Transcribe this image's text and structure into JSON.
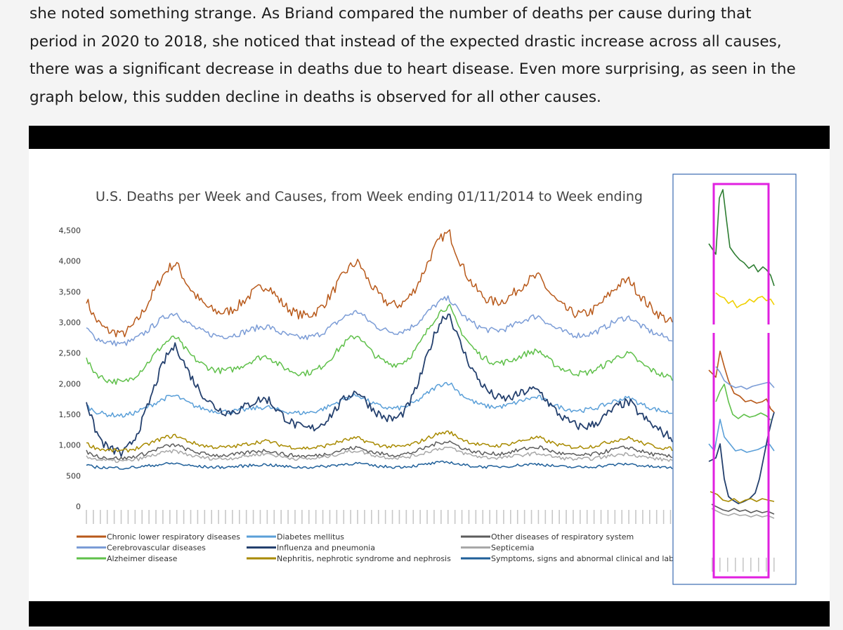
{
  "article": {
    "lines": [
      "she noted something strange. As Briand compared the number of deaths per cause during that",
      "period in 2020 to 2018, she noticed that instead of the expected drastic increase across all causes,",
      "there was a significant decrease in deaths due to heart disease. Even more surprising, as seen in the",
      "graph below, this sudden decline in deaths is observed for all other causes."
    ]
  },
  "colors": {
    "chronic_lower_respiratory": "#b8591a",
    "cerebrovascular": "#7b9cd6",
    "alzheimer": "#5fc04a",
    "diabetes": "#5a9fd8",
    "influenza": "#24406e",
    "nephritis": "#a88a00",
    "other_respiratory": "#5c5c5c",
    "septicemia": "#a8a8a8",
    "symptoms": "#1f5f99",
    "highlight_box": "#e020e0",
    "inset_border": "#3a6ab0",
    "inset_dark_green": "#2e7d32",
    "inset_yellow": "#f0d000"
  },
  "chart_data": {
    "type": "line",
    "title": "U.S. Deaths per Week and Causes, from Week ending 01/11/2014 to Week ending",
    "ylim": [
      0,
      4500
    ],
    "yticks": [
      "4,500",
      "4,000",
      "3,500",
      "3,000",
      "2,500",
      "2,000",
      "1,500",
      "1,000",
      "500",
      "0"
    ],
    "x_weeks": 338,
    "peak_weeks": [
      52,
      105,
      157,
      209,
      261,
      313
    ],
    "legend": {
      "col1": [
        "Chronic lower respiratory diseases",
        "Cerebrovascular diseases",
        "Alzheimer disease"
      ],
      "col2": [
        "Diabetes mellitus",
        "Influenza and pneumonia",
        "Nephritis, nephrotic syndrome and nephrosis"
      ],
      "col3": [
        "Other diseases of respiratory system",
        "Septicemia",
        "Symptoms, signs and abnormal clinical and laborator"
      ]
    },
    "series": [
      {
        "name": "Chronic lower respiratory diseases",
        "base": 2700,
        "amp": 1000,
        "decay": 0.02,
        "peaks": [
          3950,
          3500,
          3900,
          4350,
          3600
        ],
        "color_key": "chronic_lower_respiratory"
      },
      {
        "name": "Cerebrovascular diseases",
        "base": 2600,
        "amp": 500,
        "decay": 0.025,
        "peaks": [
          3150,
          2900,
          3150,
          3350,
          3050
        ],
        "color_key": "cerebrovascular"
      },
      {
        "name": "Alzheimer disease",
        "base": 1950,
        "amp": 500,
        "decay": 0.025,
        "peaks": [
          2750,
          2400,
          2750,
          3200,
          2450
        ],
        "color_key": "alzheimer"
      },
      {
        "name": "Diabetes mellitus",
        "base": 1450,
        "amp": 300,
        "decay": 0.03,
        "peaks": [
          1800,
          1600,
          1800,
          2000,
          1750
        ],
        "color_key": "diabetes"
      },
      {
        "name": "Influenza and pneumonia",
        "base": 700,
        "amp": 900,
        "decay": 0.006,
        "peaks": [
          2600,
          1450,
          1700,
          2950,
          1500
        ],
        "color_key": "influenza"
      },
      {
        "name": "Nephritis, nephrotic syndrome and nephrosis",
        "base": 880,
        "amp": 200,
        "decay": 0.03,
        "peaks": [
          1150,
          1050,
          1100,
          1200,
          1100
        ],
        "color_key": "nephritis"
      },
      {
        "name": "Other diseases of respiratory system",
        "base": 760,
        "amp": 200,
        "decay": 0.03,
        "peaks": [
          1000,
          900,
          950,
          1050,
          950
        ],
        "color_key": "other_respiratory"
      },
      {
        "name": "Septicemia",
        "base": 720,
        "amp": 150,
        "decay": 0.03,
        "peaks": [
          900,
          850,
          900,
          950,
          850
        ],
        "color_key": "septicemia"
      },
      {
        "name": "Symptoms, signs and abnormal clinical and laborator",
        "base": 620,
        "amp": 60,
        "decay": 0.05,
        "peaks": [
          700,
          680,
          700,
          720,
          690
        ],
        "color_key": "symptoms"
      }
    ]
  }
}
